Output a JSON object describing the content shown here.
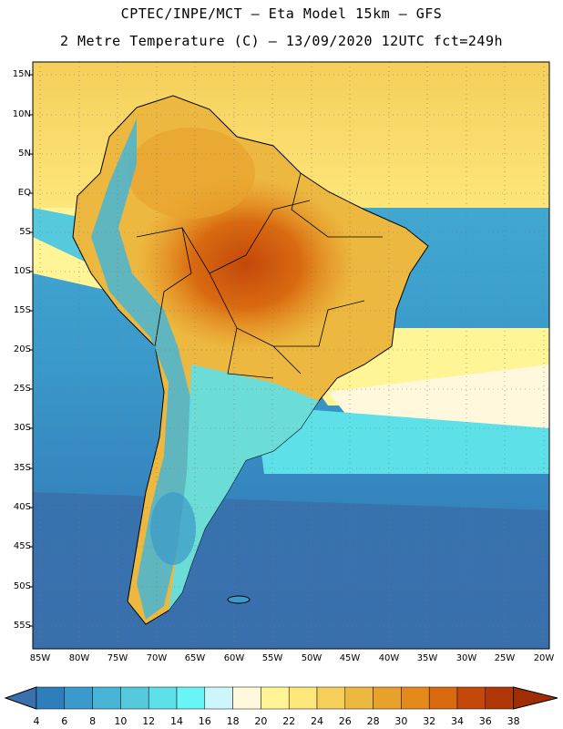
{
  "title": {
    "line1": "CPTEC/INPE/MCT –  Eta Model 15km – GFS",
    "line2": "2 Metre Temperature (C) – 13/09/2020 12UTC fct=249h"
  },
  "latitude_labels": [
    "15N",
    "10N",
    "5N",
    "EQ",
    "5S",
    "10S",
    "15S",
    "20S",
    "25S",
    "30S",
    "35S",
    "40S",
    "45S",
    "50S",
    "55S"
  ],
  "longitude_labels": [
    "85W",
    "80W",
    "75W",
    "70W",
    "65W",
    "60W",
    "55W",
    "50W",
    "45W",
    "40W",
    "35W",
    "30W",
    "25W",
    "20W"
  ],
  "colorbar": {
    "labels": [
      "4",
      "6",
      "8",
      "10",
      "12",
      "14",
      "16",
      "18",
      "20",
      "22",
      "24",
      "26",
      "28",
      "30",
      "32",
      "34",
      "36",
      "38"
    ],
    "colors": [
      "#3a70ac",
      "#2f7ebc",
      "#3a9acb",
      "#48b5d6",
      "#55cadd",
      "#5ee0e8",
      "#69f5f5",
      "#cdf5fb",
      "#fff8dc",
      "#fff596",
      "#fde67a",
      "#f5cf5a",
      "#ecb840",
      "#e8a22c",
      "#e58a1a",
      "#d96a10",
      "#c4480a",
      "#b03808",
      "#a02e05"
    ]
  }
}
